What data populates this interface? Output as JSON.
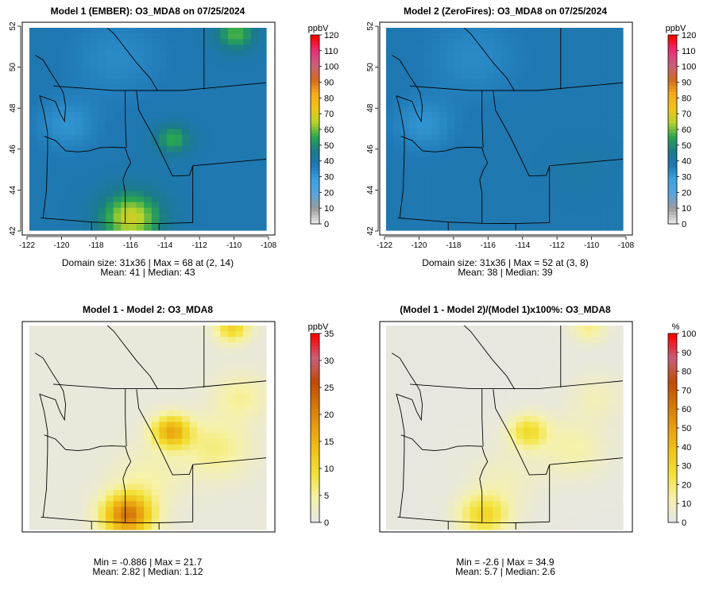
{
  "chart_data": [
    {
      "type": "heatmap",
      "title": "Model 1 (EMBER): O3_MDA8 on 07/25/2024",
      "colorbar_unit": "ppbV",
      "colorbar_ticks": [
        0,
        10,
        20,
        30,
        40,
        50,
        60,
        70,
        80,
        90,
        100,
        110,
        120
      ],
      "color_range": [
        0,
        120
      ],
      "xlim": [
        -122,
        -108
      ],
      "ylim": [
        42,
        52
      ],
      "x_ticks": [
        -122,
        -120,
        -118,
        -116,
        -114,
        -112,
        -110,
        -108
      ],
      "y_ticks": [
        42,
        44,
        46,
        48,
        50,
        52
      ],
      "show_axes": true,
      "stats": [
        "Domain size: 31x36 | Max = 68 at (2, 14)",
        "Mean: 41 |  Median: 43"
      ],
      "base_value": 38,
      "hotspots": [
        {
          "lon": -117.0,
          "lat": 42.6,
          "radius": 1.6,
          "value": 68
        },
        {
          "lon": -114.5,
          "lat": 46.5,
          "radius": 0.9,
          "value": 56
        },
        {
          "lon": -110.8,
          "lat": 51.7,
          "radius": 1.0,
          "value": 58
        },
        {
          "lon": -117.8,
          "lat": 50.5,
          "radius": 2.5,
          "value": 33
        },
        {
          "lon": -120.8,
          "lat": 47.2,
          "radius": 1.6,
          "value": 31
        }
      ]
    },
    {
      "type": "heatmap",
      "title": "Model 2 (ZeroFires): O3_MDA8 on 07/25/2024",
      "colorbar_unit": "ppbV",
      "colorbar_ticks": [
        0,
        10,
        20,
        30,
        40,
        50,
        60,
        70,
        80,
        90,
        100,
        110,
        120
      ],
      "color_range": [
        0,
        120
      ],
      "xlim": [
        -122,
        -108
      ],
      "ylim": [
        42,
        52
      ],
      "x_ticks": [
        -122,
        -120,
        -118,
        -116,
        -114,
        -112,
        -110,
        -108
      ],
      "y_ticks": [
        42,
        44,
        46,
        48,
        50,
        52
      ],
      "show_axes": true,
      "stats": [
        "Domain size: 31x36 | Max = 52 at (3, 8)",
        "Mean: 38 |  Median: 39"
      ],
      "base_value": 38,
      "hotspots": [
        {
          "lon": -117.8,
          "lat": 50.5,
          "radius": 2.5,
          "value": 33
        },
        {
          "lon": -120.8,
          "lat": 47.2,
          "radius": 1.6,
          "value": 31
        },
        {
          "lon": -111.5,
          "lat": 45.0,
          "radius": 1.5,
          "value": 40
        }
      ]
    },
    {
      "type": "heatmap",
      "title": "Model 1 - Model 2: O3_MDA8",
      "colorbar_unit": "ppbV",
      "colorbar_ticks": [
        0,
        5,
        10,
        15,
        20,
        25,
        30,
        35
      ],
      "color_range": [
        0,
        35
      ],
      "xlim": [
        -122,
        -108
      ],
      "ylim": [
        42,
        52
      ],
      "show_axes": false,
      "stats": [
        "Min = -0.886 | Max = 21.7",
        "Mean: 2.82 |  Median: 1.12"
      ],
      "base_value": 0.8,
      "hotspots": [
        {
          "lon": -117.2,
          "lat": 42.7,
          "radius": 1.3,
          "value": 21.7
        },
        {
          "lon": -114.6,
          "lat": 46.8,
          "radius": 1.0,
          "value": 16
        },
        {
          "lon": -111.0,
          "lat": 51.9,
          "radius": 0.9,
          "value": 11
        },
        {
          "lon": -112.0,
          "lat": 46.0,
          "radius": 1.8,
          "value": 6
        },
        {
          "lon": -116.0,
          "lat": 44.5,
          "radius": 1.8,
          "value": 4
        },
        {
          "lon": -110.5,
          "lat": 48.5,
          "radius": 1.4,
          "value": 5
        }
      ]
    },
    {
      "type": "heatmap",
      "title": "(Model 1 - Model 2)/(Model 1)x100%: O3_MDA8",
      "colorbar_unit": "%",
      "colorbar_ticks": [
        0,
        10,
        20,
        30,
        40,
        50,
        60,
        70,
        80,
        90,
        100
      ],
      "color_range": [
        0,
        100
      ],
      "xlim": [
        -122,
        -108
      ],
      "ylim": [
        42,
        52
      ],
      "show_axes": false,
      "stats": [
        "Min = -2.6 | Max = 34.9",
        "Mean: 5.7 |  Median: 2.6"
      ],
      "base_value": 1.5,
      "hotspots": [
        {
          "lon": -117.2,
          "lat": 42.7,
          "radius": 1.3,
          "value": 30
        },
        {
          "lon": -114.6,
          "lat": 46.8,
          "radius": 1.0,
          "value": 28
        },
        {
          "lon": -111.0,
          "lat": 51.9,
          "radius": 0.9,
          "value": 16
        },
        {
          "lon": -112.0,
          "lat": 46.0,
          "radius": 1.8,
          "value": 12
        },
        {
          "lon": -116.0,
          "lat": 44.5,
          "radius": 1.8,
          "value": 8
        },
        {
          "lon": -110.5,
          "lat": 48.5,
          "radius": 1.4,
          "value": 9
        }
      ]
    }
  ],
  "colors": {
    "ramp_ppb": [
      "#e6e6e6",
      "#9a9a9a",
      "#5aa5dd",
      "#3aa3e0",
      "#1f78b4",
      "#1b7a8a",
      "#2aa650",
      "#b7d32a",
      "#f2c318",
      "#f6ab1a",
      "#d2691e",
      "#c8607a",
      "#e8307a",
      "#ff0000"
    ],
    "ramp_diff": [
      "#e6e6e6",
      "#f6f2a8",
      "#f3e23a",
      "#f0c419",
      "#e8a010",
      "#d47608",
      "#c04a05",
      "#c8607a",
      "#ff0000"
    ],
    "map_lines": "#000000"
  }
}
